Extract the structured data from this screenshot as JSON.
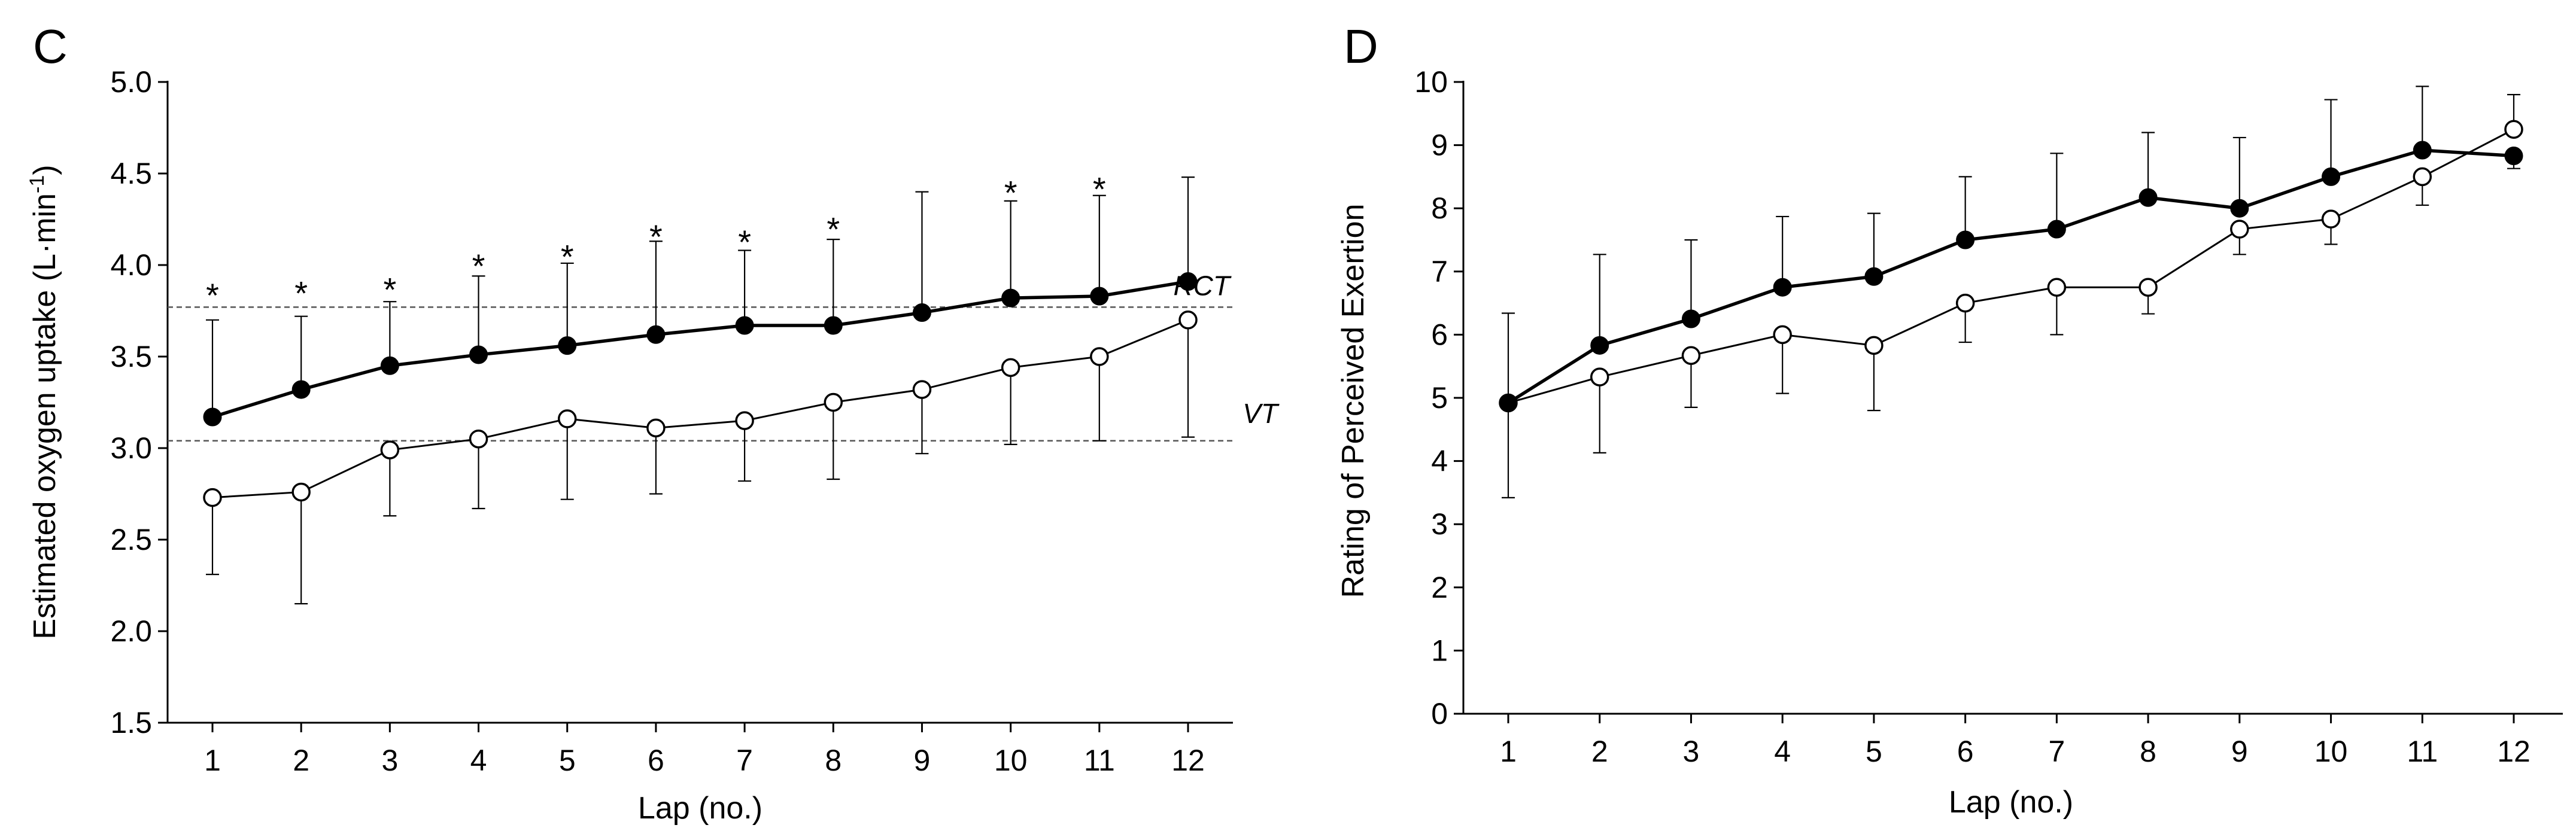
{
  "chart_data": [
    {
      "panel": "C",
      "type": "line",
      "xlabel": "Lap (no.)",
      "ylabel_main": "Estimated oxygen uptake (L·min",
      "ylabel_sup": "-1",
      "ylabel_end": ")",
      "categories": [
        "1",
        "2",
        "3",
        "4",
        "5",
        "6",
        "7",
        "8",
        "9",
        "10",
        "11",
        "12"
      ],
      "ylim": [
        1.5,
        5.0
      ],
      "yticks": [
        "1.5",
        "2.0",
        "2.5",
        "3.0",
        "3.5",
        "4.0",
        "4.5",
        "5.0"
      ],
      "series": [
        {
          "name": "filled",
          "marker": "filled",
          "values": [
            3.17,
            3.32,
            3.45,
            3.51,
            3.56,
            3.62,
            3.67,
            3.67,
            3.74,
            3.82,
            3.83,
            3.91
          ],
          "err_upper": [
            0.53,
            0.4,
            0.35,
            0.43,
            0.45,
            0.51,
            0.41,
            0.47,
            0.66,
            0.53,
            0.55,
            0.57
          ],
          "err_lower": [
            0,
            0,
            0,
            0,
            0,
            0,
            0,
            0,
            0,
            0,
            0,
            0
          ]
        },
        {
          "name": "open",
          "marker": "open",
          "values": [
            2.73,
            2.76,
            2.99,
            3.05,
            3.16,
            3.11,
            3.15,
            3.25,
            3.32,
            3.44,
            3.5,
            3.7
          ],
          "err_upper": [
            0,
            0,
            0,
            0,
            0,
            0,
            0,
            0,
            0,
            0,
            0,
            0
          ],
          "err_lower": [
            0.42,
            0.61,
            0.36,
            0.38,
            0.44,
            0.36,
            0.33,
            0.42,
            0.35,
            0.42,
            0.46,
            0.64
          ]
        }
      ],
      "reference_lines": [
        {
          "label": "RCT",
          "value": 3.77
        },
        {
          "label": "VT",
          "value": 3.04
        }
      ],
      "significance": {
        "symbol": "*",
        "laps": [
          1,
          2,
          3,
          4,
          5,
          6,
          7,
          8,
          10,
          11
        ],
        "values": [
          3.87,
          3.88,
          3.9,
          4.03,
          4.08,
          4.19,
          4.16,
          4.23,
          4.43,
          4.45
        ]
      }
    },
    {
      "panel": "D",
      "type": "line",
      "xlabel": "Lap (no.)",
      "ylabel": "Rating of Perceived Exertion",
      "categories": [
        "1",
        "2",
        "3",
        "4",
        "5",
        "6",
        "7",
        "8",
        "9",
        "10",
        "11",
        "12"
      ],
      "ylim": [
        0,
        10
      ],
      "yticks": [
        "0",
        "1",
        "2",
        "3",
        "4",
        "5",
        "6",
        "7",
        "8",
        "9",
        "10"
      ],
      "series": [
        {
          "name": "filled",
          "marker": "filled",
          "values": [
            4.92,
            5.83,
            6.25,
            6.75,
            6.92,
            7.5,
            7.67,
            8.17,
            8.0,
            8.5,
            8.92,
            8.83
          ],
          "err_upper": [
            1.42,
            1.44,
            1.25,
            1.12,
            1.0,
            1.0,
            1.2,
            1.03,
            1.12,
            1.22,
            1.01,
            0
          ],
          "err_lower": [
            1.5,
            0,
            0,
            0,
            0,
            0,
            0,
            0,
            0,
            0,
            0,
            0.2
          ]
        },
        {
          "name": "open",
          "marker": "open",
          "values": [
            4.92,
            5.33,
            5.67,
            6.0,
            5.83,
            6.5,
            6.75,
            6.75,
            7.67,
            7.83,
            8.5,
            9.25
          ],
          "err_upper": [
            0,
            0,
            0,
            0,
            0,
            0,
            0,
            0,
            0,
            0,
            0,
            0.55
          ],
          "err_lower": [
            0,
            1.2,
            0.82,
            0.93,
            1.03,
            0.62,
            0.75,
            0.42,
            0.4,
            0.4,
            0.45,
            0
          ]
        }
      ]
    }
  ]
}
